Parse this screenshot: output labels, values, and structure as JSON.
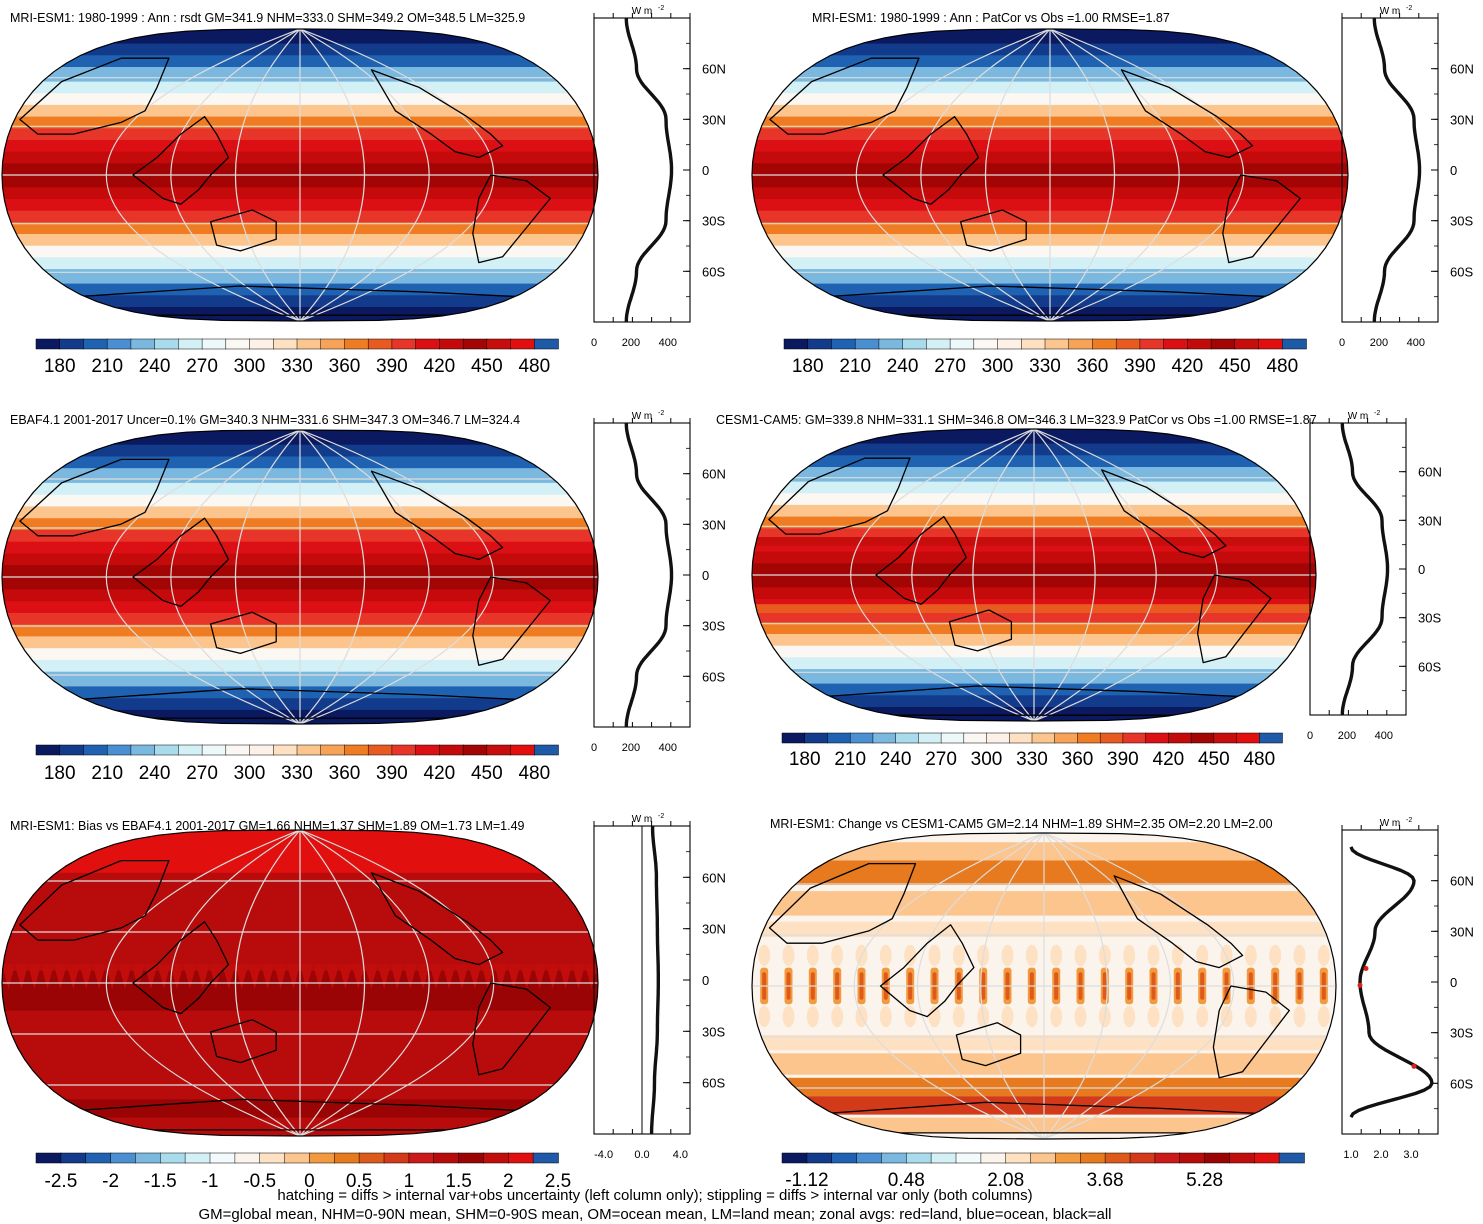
{
  "panels": [
    {
      "title": "MRI-ESM1: 1980-1999 : Ann : rsdt GM=341.9 NHM=333.0 SHM=349.2 OM=348.5 LM=325.9",
      "field": "rsdt",
      "colorbar_labels": [
        "180",
        "210",
        "240",
        "270",
        "300",
        "330",
        "360",
        "390",
        "420",
        "450",
        "480"
      ],
      "zonal": {
        "unit_label": "W m",
        "x_ticks": [
          "0",
          "200",
          "400"
        ],
        "x_tick_values": [
          0,
          200,
          400
        ],
        "x_range": [
          0,
          520
        ],
        "lat_ticks": [
          "60N",
          "30N",
          "0",
          "30S",
          "60S"
        ]
      }
    },
    {
      "title": "MRI-ESM1: 1980-1999 : Ann : PatCor vs Obs =1.00 RMSE=1.87",
      "field": "rsdt",
      "colorbar_labels": [
        "180",
        "210",
        "240",
        "270",
        "300",
        "330",
        "360",
        "390",
        "420",
        "450",
        "480"
      ],
      "zonal": {
        "unit_label": "W m",
        "x_ticks": [
          "0",
          "200",
          "400"
        ],
        "x_tick_values": [
          0,
          200,
          400
        ],
        "x_range": [
          0,
          520
        ],
        "lat_ticks": [
          "60N",
          "30N",
          "0",
          "30S",
          "60S"
        ]
      }
    },
    {
      "title": "EBAF4.1 2001-2017 Uncer=0.1% GM=340.3 NHM=331.6 SHM=347.3 OM=346.7 LM=324.4",
      "field": "rsdt",
      "colorbar_labels": [
        "180",
        "210",
        "240",
        "270",
        "300",
        "330",
        "360",
        "390",
        "420",
        "450",
        "480"
      ],
      "zonal": {
        "unit_label": "W m",
        "x_ticks": [
          "0",
          "200",
          "400"
        ],
        "x_tick_values": [
          0,
          200,
          400
        ],
        "x_range": [
          0,
          520
        ],
        "lat_ticks": [
          "60N",
          "30N",
          "0",
          "30S",
          "60S"
        ]
      }
    },
    {
      "title": "CESM1-CAM5: GM=339.8 NHM=331.1 SHM=346.8 OM=346.3 LM=323.9 PatCor vs Obs =1.00 RMSE=1.87",
      "field": "rsdt",
      "colorbar_labels": [
        "180",
        "210",
        "240",
        "270",
        "300",
        "330",
        "360",
        "390",
        "420",
        "450",
        "480"
      ],
      "zonal": {
        "unit_label": "W m",
        "x_ticks": [
          "0",
          "200",
          "400"
        ],
        "x_tick_values": [
          0,
          200,
          400
        ],
        "x_range": [
          0,
          520
        ],
        "lat_ticks": [
          "60N",
          "30N",
          "0",
          "30S",
          "60S"
        ]
      }
    },
    {
      "title": "MRI-ESM1: Bias vs EBAF4.1 2001-2017 GM=1.66 NHM=1.37 SHM=1.89 OM=1.73 LM=1.49",
      "field": "bias",
      "colorbar_labels": [
        "-2.5",
        "-2",
        "-1.5",
        "-1",
        "-0.5",
        "0",
        "0.5",
        "1",
        "1.5",
        "2",
        "2.5"
      ],
      "zonal": {
        "unit_label": "W m",
        "x_ticks": [
          "-4.0",
          "0.0",
          "4.0"
        ],
        "x_tick_values": [
          -4,
          0,
          4
        ],
        "x_range": [
          -5,
          5
        ],
        "zero_line": true,
        "lat_ticks": [
          "60N",
          "30N",
          "0",
          "30S",
          "60S"
        ]
      }
    },
    {
      "title": "MRI-ESM1: Change vs CESM1-CAM5 GM=2.14 NHM=1.89 SHM=2.35 OM=2.20 LM=2.00",
      "field": "change",
      "colorbar_labels": [
        "-1.12",
        "0.48",
        "2.08",
        "3.68",
        "5.28"
      ],
      "colorbar_label_every": 2,
      "zonal": {
        "unit_label": "W m",
        "x_ticks": [
          "1.0",
          "2.0",
          "3.0"
        ],
        "x_tick_values": [
          1,
          2,
          3
        ],
        "x_range": [
          0.7,
          3.9
        ],
        "lat_ticks": [
          "60N",
          "30N",
          "0",
          "30S",
          "60S"
        ]
      }
    }
  ],
  "chart_data": [
    {
      "type": "heatmap",
      "projection": "robinson",
      "title": "MRI-ESM1: 1980-1999 : Ann : rsdt GM=341.9 NHM=333.0 SHM=349.2 OM=348.5 LM=325.9",
      "colorbar_levels": [
        180,
        195,
        210,
        225,
        240,
        255,
        270,
        285,
        300,
        315,
        330,
        345,
        360,
        375,
        390,
        405,
        420,
        435,
        450,
        465,
        480
      ],
      "zonal_mean": {
        "unit": "W m-2",
        "lat": [
          -90,
          -60,
          -30,
          0,
          30,
          60,
          90
        ],
        "values": [
          175,
          230,
          390,
          420,
          390,
          230,
          175
        ]
      }
    },
    {
      "type": "heatmap",
      "projection": "robinson",
      "title": "MRI-ESM1: 1980-1999 : Ann : PatCor vs Obs =1.00 RMSE=1.87",
      "colorbar_levels": [
        180,
        195,
        210,
        225,
        240,
        255,
        270,
        285,
        300,
        315,
        330,
        345,
        360,
        375,
        390,
        405,
        420,
        435,
        450,
        465,
        480
      ],
      "zonal_mean": {
        "unit": "W m-2",
        "lat": [
          -90,
          -60,
          -30,
          0,
          30,
          60,
          90
        ],
        "values": [
          175,
          230,
          390,
          420,
          390,
          230,
          175
        ]
      }
    },
    {
      "type": "heatmap",
      "projection": "robinson",
      "title": "EBAF4.1 2001-2017 Uncer=0.1% GM=340.3 NHM=331.6 SHM=347.3 OM=346.7 LM=324.4",
      "colorbar_levels": [
        180,
        195,
        210,
        225,
        240,
        255,
        270,
        285,
        300,
        315,
        330,
        345,
        360,
        375,
        390,
        405,
        420,
        435,
        450,
        465,
        480
      ],
      "zonal_mean": {
        "unit": "W m-2",
        "lat": [
          -90,
          -60,
          -30,
          0,
          30,
          60,
          90
        ],
        "values": [
          175,
          230,
          390,
          420,
          390,
          230,
          175
        ]
      }
    },
    {
      "type": "heatmap",
      "projection": "robinson",
      "title": "CESM1-CAM5: GM=339.8 NHM=331.1 SHM=346.8 OM=346.3 LM=323.9 PatCor vs Obs =1.00 RMSE=1.87",
      "colorbar_levels": [
        180,
        195,
        210,
        225,
        240,
        255,
        270,
        285,
        300,
        315,
        330,
        345,
        360,
        375,
        390,
        405,
        420,
        435,
        450,
        465,
        480
      ],
      "zonal_mean": {
        "unit": "W m-2",
        "lat": [
          -90,
          -60,
          -30,
          0,
          30,
          60,
          90
        ],
        "values": [
          175,
          230,
          390,
          420,
          390,
          230,
          175
        ]
      }
    },
    {
      "type": "heatmap",
      "projection": "robinson",
      "title": "MRI-ESM1: Bias vs EBAF4.1 2001-2017 GM=1.66 NHM=1.37 SHM=1.89 OM=1.73 LM=1.49",
      "colorbar_levels": [
        -2.5,
        -2.25,
        -2,
        -1.75,
        -1.5,
        -1.25,
        -1,
        -0.75,
        -0.5,
        -0.25,
        0,
        0.25,
        0.5,
        0.75,
        1,
        1.25,
        1.5,
        1.75,
        2,
        2.25,
        2.5
      ],
      "zonal_mean": {
        "unit": "W m-2",
        "lat": [
          -90,
          -60,
          -30,
          0,
          30,
          60,
          90
        ],
        "values": [
          1.0,
          1.3,
          1.6,
          1.7,
          1.6,
          1.5,
          1.1
        ]
      }
    },
    {
      "type": "heatmap",
      "projection": "robinson",
      "title": "MRI-ESM1: Change vs CESM1-CAM5 GM=2.14 NHM=1.89 SHM=2.35 OM=2.20 LM=2.00",
      "colorbar_levels": [
        -1.12,
        0.48,
        2.08,
        3.68,
        5.28
      ],
      "zonal_mean": {
        "unit": "W m-2",
        "lat": [
          -80,
          -60,
          -30,
          0,
          30,
          60,
          80
        ],
        "values": [
          1.0,
          3.7,
          1.6,
          1.3,
          1.8,
          3.1,
          1.0
        ]
      }
    }
  ],
  "footer": {
    "line1": "hatching = diffs > internal var+obs uncertainty (left column only); stippling = diffs > internal var only (both columns)",
    "line2": "GM=global mean, NHM=0-90N mean, SHM=0-90S mean, OM=ocean mean, LM=land mean; zonal avgs: red=land, blue=ocean, black=all"
  },
  "colors": {
    "absolute_scale": [
      "#0b1a60",
      "#123b8c",
      "#1f62b2",
      "#4a8fd2",
      "#7ab8e0",
      "#a8dcec",
      "#d2f0f6",
      "#edf8fb",
      "#fbf7f2",
      "#fdf0e6",
      "#fde1c2",
      "#fcc58e",
      "#f8a257",
      "#ef7c22",
      "#e85a20",
      "#e8352a",
      "#dc0f14",
      "#c40a0a",
      "#a30404",
      "#c80d0d",
      "#e20f0f",
      "#1f5aa8"
    ],
    "diff_scale": [
      "#0b1a60",
      "#123b8c",
      "#1f62b2",
      "#4a8fd2",
      "#7ab8e0",
      "#a8dcec",
      "#d2f0f6",
      "#f2fafc",
      "#fbf4ec",
      "#fde1c2",
      "#fcc58e",
      "#f3993f",
      "#e77a1e",
      "#dd5a1a",
      "#d23a1a",
      "#cc1a1a",
      "#b80c0c",
      "#9a0404",
      "#c20d0d",
      "#e20f0f",
      "#1f5aa8"
    ],
    "zonal_line": "#111111",
    "zonal_land": "#e0201a",
    "zonal_ocean": "#1a3ab8"
  }
}
